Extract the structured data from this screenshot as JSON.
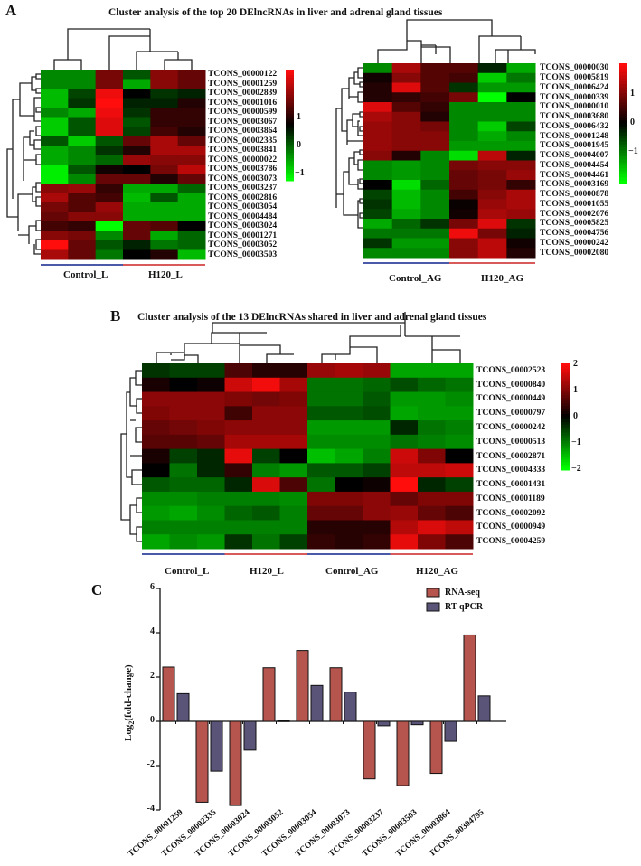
{
  "panelA": {
    "letter": "A",
    "title": "Cluster analysis of the top 20 DElncRNAs in liver and adrenal gland tissues",
    "liver": {
      "rows": [
        "TCONS_00000122",
        "TCONS_00001259",
        "TCONS_00002839",
        "TCONS_00001016",
        "TCONS_00000599",
        "TCONS_00003067",
        "TCONS_00003864",
        "TCONS_00002335",
        "TCONS_00003841",
        "TCONS_00000022",
        "TCONS_00003786",
        "TCONS_00003073",
        "TCONS_00003237",
        "TCONS_00002816",
        "TCONS_00003054",
        "TCONS_00004484",
        "TCONS_00003024",
        "TCONS_00001271",
        "TCONS_00003052",
        "TCONS_00003503"
      ],
      "groups": [
        "Control_L",
        "H120_L"
      ],
      "colorbar": [
        "1",
        "0",
        "−1"
      ],
      "matrix": [
        [
          -0.8,
          -0.8,
          0.7,
          -0.5,
          0.8,
          0.6
        ],
        [
          -0.8,
          -0.8,
          0.7,
          -1,
          0.8,
          0.6
        ],
        [
          -1.1,
          -0.4,
          1.4,
          0,
          -0.3,
          -0.2
        ],
        [
          -1.1,
          -0.3,
          1.5,
          -0.2,
          -0.2,
          0.2
        ],
        [
          -0.8,
          -1,
          1.4,
          -0.3,
          0.3,
          0.3
        ],
        [
          -1.2,
          -0.5,
          1.3,
          -0.5,
          0.3,
          0.3
        ],
        [
          -1.2,
          -0.5,
          1.3,
          -0.4,
          0.4,
          0.2
        ],
        [
          -0.5,
          -1.2,
          -0.5,
          0.6,
          1.0,
          0.6
        ],
        [
          -1,
          -0.8,
          -0.3,
          0.2,
          1.0,
          1.0
        ],
        [
          -1,
          -0.8,
          -0.6,
          0.9,
          0.8,
          0.8
        ],
        [
          -1.4,
          -0.5,
          0.1,
          0,
          0.7,
          1.1
        ],
        [
          -1.4,
          -0.8,
          0.6,
          0.6,
          0.2,
          0.6
        ],
        [
          0.8,
          0.9,
          0.3,
          -1,
          -1,
          -0.6
        ],
        [
          1.0,
          0.5,
          0.4,
          -1.1,
          -0.5,
          -1
        ],
        [
          0.7,
          0.5,
          0.9,
          -1,
          -1,
          -1
        ],
        [
          0.6,
          0.8,
          0.8,
          -1,
          -1,
          -1
        ],
        [
          0.4,
          0.3,
          -1.6,
          0.6,
          0.5,
          0
        ],
        [
          0.8,
          0.7,
          -0.8,
          0.6,
          -1,
          -0.6
        ],
        [
          1.5,
          0.6,
          -0.5,
          -0.2,
          -0.7,
          -0.6
        ],
        [
          1.0,
          0.6,
          -0.7,
          0,
          0.2,
          -1.1
        ]
      ]
    },
    "adrenal": {
      "rows": [
        "TCONS_00000030",
        "TCONS_00005819",
        "TCONS_00006424",
        "TCONS_00000339",
        "TCONS_00000010",
        "TCONS_00003680",
        "TCONS_00006432",
        "TCONS_00001248",
        "TCONS_00001945",
        "TCONS_00004007",
        "TCONS_00004454",
        "TCONS_00004461",
        "TCONS_00003169",
        "TCONS_00000878",
        "TCONS_00001055",
        "TCONS_00002076",
        "TCONS_00005825",
        "TCONS_00004756",
        "TCONS_00000242",
        "TCONS_00002080"
      ],
      "groups": [
        "Control_AG",
        "H120_AG"
      ],
      "colorbar": [
        "1",
        "0",
        "−1"
      ],
      "matrix": [
        [
          -0.8,
          1.0,
          0.5,
          0.5,
          -0.2,
          -1
        ],
        [
          0.1,
          0.8,
          0.5,
          0.4,
          -1.2,
          -0.7
        ],
        [
          0.2,
          1.3,
          0.5,
          -0.3,
          -0.9,
          -0.9
        ],
        [
          0.2,
          0.3,
          0.4,
          0.7,
          -1.6,
          0
        ],
        [
          1.3,
          0.5,
          0.3,
          -0.8,
          -0.8,
          -0.8
        ],
        [
          1.0,
          0.8,
          0.2,
          -0.8,
          -0.8,
          -0.8
        ],
        [
          0.9,
          0.8,
          0.7,
          -0.8,
          -1.2,
          -0.4
        ],
        [
          0.9,
          0.8,
          0.8,
          -0.8,
          -1,
          -0.8
        ],
        [
          0.9,
          0.8,
          0.8,
          -0.9,
          -0.9,
          -0.9
        ],
        [
          0.8,
          0.2,
          -0.8,
          -1.3,
          1.1,
          -0.2
        ],
        [
          -0.8,
          -0.9,
          -0.8,
          0.7,
          0.8,
          0.8
        ],
        [
          -0.8,
          -0.9,
          -0.8,
          0.6,
          0.7,
          0.9
        ],
        [
          0,
          -1.3,
          -0.6,
          0.6,
          0.7,
          0.3
        ],
        [
          -0.4,
          -1.1,
          -0.8,
          0.4,
          0.8,
          1.0
        ],
        [
          -0.3,
          -1.1,
          -0.8,
          0.05,
          0.9,
          1.0
        ],
        [
          -0.4,
          -1.0,
          -0.8,
          0.1,
          1.0,
          0.9
        ],
        [
          -1,
          -0.6,
          -0.3,
          0.7,
          1.3,
          -0.3
        ],
        [
          -0.7,
          -0.7,
          -0.7,
          1.4,
          0.7,
          -0.2
        ],
        [
          -0.3,
          -0.9,
          -0.9,
          0.8,
          1.1,
          0.1
        ],
        [
          -0.8,
          -0.8,
          -0.8,
          0.8,
          1.1,
          0.2
        ]
      ]
    }
  },
  "panelB": {
    "letter": "B",
    "title": "Cluster analysis of the 13 DElncRNAs shared in liver and adrenal gland tissues",
    "rows": [
      "TCONS_00002523",
      "TCONS_00000840",
      "TCONS_00000449",
      "TCONS_00000797",
      "TCONS_00000242",
      "TCONS_00000513",
      "TCONS_00002871",
      "TCONS_00004333",
      "TCONS_00001431",
      "TCONS_00001189",
      "TCONS_00002092",
      "TCONS_00000949",
      "TCONS_00004259"
    ],
    "groups": [
      "Control_L",
      "H120_L",
      "Control_AG",
      "H120_AG"
    ],
    "colorbar": [
      "2",
      "1",
      "0",
      "−1",
      "−2"
    ],
    "matrix": [
      [
        -0.4,
        -0.5,
        -0.5,
        0.6,
        0.3,
        0.3,
        1.2,
        1.3,
        1.2,
        -1.3,
        -1.3,
        -1.3
      ],
      [
        0.2,
        0,
        0.1,
        1.6,
        1.9,
        1.3,
        -0.9,
        -0.9,
        -0.8,
        -0.6,
        -0.8,
        -0.9
      ],
      [
        1.1,
        1.1,
        1.1,
        1.0,
        0.9,
        1.0,
        -0.9,
        -0.9,
        -0.7,
        -1.2,
        -1.2,
        -1.1
      ],
      [
        1.0,
        1.1,
        1.1,
        0.5,
        1.1,
        1.1,
        -0.7,
        -0.7,
        -0.6,
        -1.3,
        -1.2,
        -1.2
      ],
      [
        0.8,
        0.9,
        1.0,
        1.1,
        1.1,
        1.1,
        -1.2,
        -1.2,
        -1.2,
        -0.3,
        -0.9,
        -1.0
      ],
      [
        0.7,
        0.7,
        0.8,
        1.3,
        1.3,
        1.3,
        -1.1,
        -1.1,
        -1.1,
        -0.9,
        -1.0,
        -1.1
      ],
      [
        0.2,
        -0.5,
        -0.3,
        1.8,
        -0.5,
        0,
        -1.5,
        -1.3,
        -1.0,
        1.6,
        1.0,
        0
      ],
      [
        0,
        -0.9,
        -0.3,
        0.4,
        -1.0,
        -1.2,
        -0.7,
        -0.7,
        -0.5,
        1.5,
        1.5,
        1.6
      ],
      [
        -0.7,
        -0.8,
        -0.8,
        -0.3,
        1.7,
        0.6,
        -0.9,
        0,
        0.1,
        2.0,
        -0.3,
        -0.5
      ],
      [
        -1.1,
        -1.1,
        -1.0,
        -1.0,
        -1.0,
        -1.1,
        1.0,
        1.0,
        1.1,
        0.8,
        1.0,
        1.0
      ],
      [
        -1.2,
        -1.3,
        -1.1,
        -0.8,
        -0.7,
        -1.0,
        0.8,
        0.8,
        1.1,
        1.2,
        0.8,
        0.6
      ],
      [
        -1.0,
        -1.0,
        -1.0,
        -1.0,
        -1.0,
        -1.0,
        0.3,
        0.3,
        0.3,
        1.4,
        1.7,
        1.5
      ],
      [
        -1.3,
        -1.1,
        -1.2,
        -0.4,
        -0.9,
        -0.5,
        0.4,
        0.3,
        0.4,
        1.8,
        1.0,
        0.6
      ]
    ]
  },
  "panelC": {
    "letter": "C",
    "chart_data": {
      "type": "bar",
      "title": "",
      "xlabel": "",
      "ylabel": "Log2(fold-change)",
      "ylabel_main": "Log",
      "ylabel_sub": "2",
      "ylabel_rest": "(fold-change)",
      "ylim": [
        -4,
        6
      ],
      "yticks": [
        "6",
        "4",
        "2",
        "0",
        "-2",
        "-4"
      ],
      "ytick_values": [
        6,
        4,
        2,
        0,
        -2,
        -4
      ],
      "legend_position": "top-right",
      "categories": [
        "TCONS_00001259",
        "TCONS_00002335",
        "TCONS_00003024",
        "TCONS_00003052",
        "TCONS_00003054",
        "TCONS_00003073",
        "TCONS_00003237",
        "TCONS_00003503",
        "TCONS_00003864",
        "TCONS_00304795"
      ],
      "series": [
        {
          "name": "RNA-seq",
          "color": "#b5554e",
          "values": [
            2.45,
            -3.65,
            -3.8,
            2.42,
            3.2,
            2.42,
            -2.6,
            -2.9,
            -2.35,
            3.9
          ]
        },
        {
          "name": "RT-qPCR",
          "color": "#5a5478",
          "values": [
            1.25,
            -2.25,
            -1.3,
            0.03,
            1.62,
            1.32,
            -0.2,
            -0.15,
            -0.9,
            1.15
          ]
        }
      ]
    }
  }
}
